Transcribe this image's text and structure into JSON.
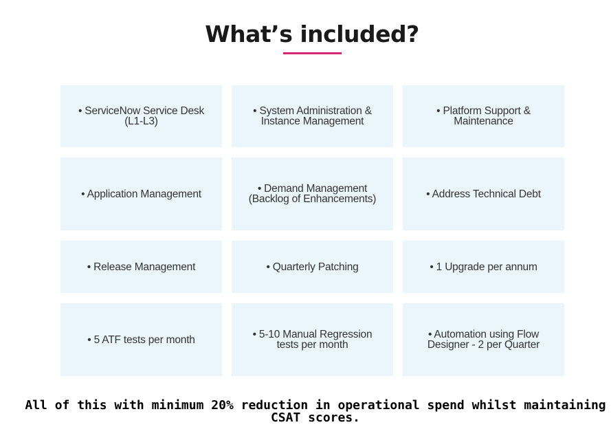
{
  "header": {
    "title": "What’s included?",
    "accent_color": "#d6246e"
  },
  "cards": [
    {
      "text": "• ServiceNow Service Desk (L1-L3)"
    },
    {
      "text": "• System Administration & Instance Management"
    },
    {
      "text": "• Platform Support & Maintenance"
    },
    {
      "text": "• Application Management"
    },
    {
      "text": "• Demand Management (Backlog of Enhancements)"
    },
    {
      "text": "• Address Technical Debt"
    },
    {
      "text": "• Release Management"
    },
    {
      "text": "• Quarterly Patching"
    },
    {
      "text": "• 1 Upgrade per annum"
    },
    {
      "text": "• 5 ATF tests per month"
    },
    {
      "text": "• 5-10 Manual Regression tests per month"
    },
    {
      "text": "• Automation using Flow Designer - 2 per Quarter"
    }
  ],
  "card_background": "#eaf6fb",
  "footer": {
    "text": "All of this with minimum 20% reduction in operational spend whilst maintaining CSAT scores."
  }
}
